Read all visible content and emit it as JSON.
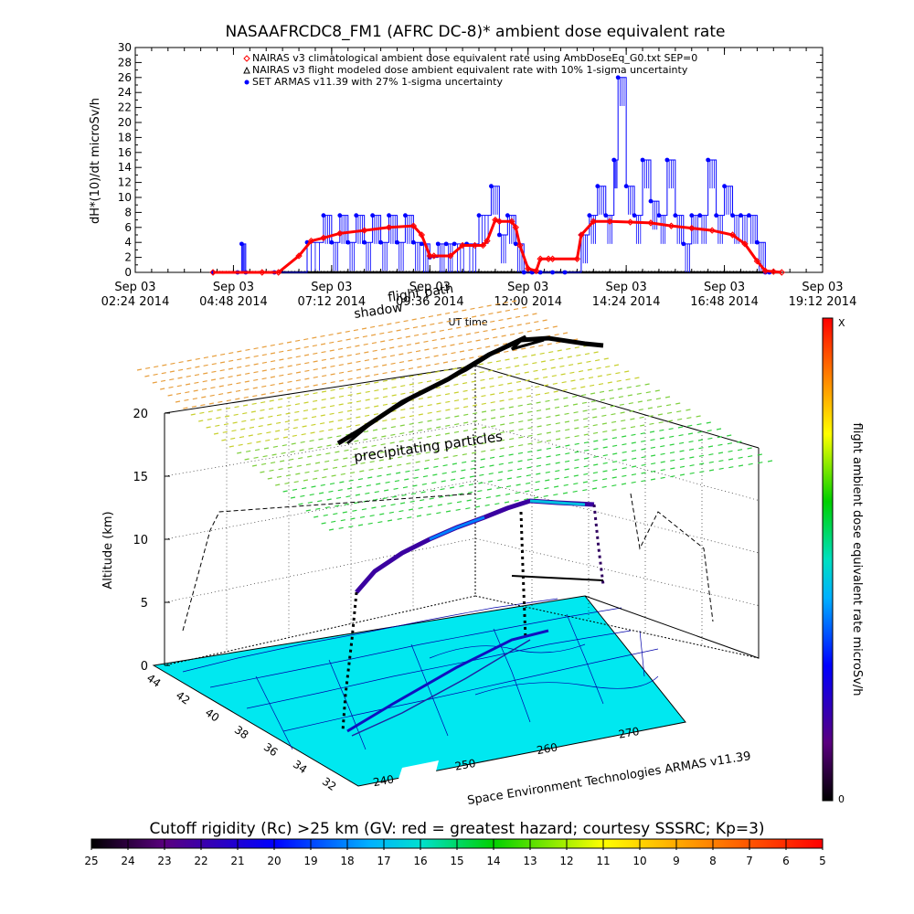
{
  "chart_data": [
    {
      "type": "line",
      "title": "NASAAFRCDC8_FM1 (AFRC DC-8)* ambient dose equivalent rate",
      "ylabel": "dH*(10)/dt microSv/h",
      "xlabel": "UT time",
      "ylim": [
        0,
        30
      ],
      "yticks": [
        "0",
        "2",
        "4",
        "6",
        "8",
        "10",
        "12",
        "14",
        "16",
        "18",
        "20",
        "22",
        "24",
        "26",
        "28",
        "30"
      ],
      "xticks": [
        {
          "date": "Sep 03",
          "time": "02:24 2014"
        },
        {
          "date": "Sep 03",
          "time": "04:48 2014"
        },
        {
          "date": "Sep 03",
          "time": "07:12 2014"
        },
        {
          "date": "Sep 03",
          "time": "09:36 2014"
        },
        {
          "date": "Sep 03",
          "time": "12:00 2014"
        },
        {
          "date": "Sep 03",
          "time": "14:24 2014"
        },
        {
          "date": "Sep 03",
          "time": "16:48 2014"
        },
        {
          "date": "Sep 03",
          "time": "19:12 2014"
        }
      ],
      "xrange_hours": [
        2.4,
        19.2
      ],
      "legend_position": "top",
      "legend": [
        "NAIRAS v3 climatological ambient dose equivalent rate using AmbDoseEq_G0.txt SEP=0",
        "NAIRAS v3 flight modeled dose ambient equivalent rate with 10% 1-sigma uncertainty",
        "SET ARMAS v11.39 with 27% 1-sigma uncertainty"
      ],
      "colors": {
        "nairas_clim": "#ff0000",
        "nairas_flight": "#000000",
        "armas": "#0000ff"
      },
      "series": [
        {
          "name": "NAIRAS v3 climatological ambient dose equivalent rate using AmbDoseEq_G0.txt SEP=0",
          "x": [
            4.3,
            5.5,
            5.9,
            6.4,
            6.7,
            7.0,
            7.4,
            8.0,
            8.6,
            9.2,
            9.4,
            9.6,
            9.7,
            10.1,
            10.4,
            10.7,
            10.9,
            11.0,
            11.2,
            11.3,
            11.6,
            11.7,
            11.8,
            12.0,
            12.2,
            12.3,
            12.5,
            12.6,
            13.2,
            13.3,
            13.6,
            14.0,
            14.5,
            15.0,
            15.5,
            16.0,
            16.5,
            17.0,
            17.3,
            17.6,
            17.8,
            18.0,
            18.2
          ],
          "y": [
            0,
            0,
            0,
            2.2,
            4.2,
            4.6,
            5.2,
            5.6,
            6.0,
            6.2,
            5.0,
            2.2,
            2.2,
            2.2,
            3.6,
            3.6,
            3.6,
            4.2,
            7.0,
            6.8,
            6.8,
            6.0,
            3.6,
            0.5,
            0.2,
            1.8,
            1.8,
            1.8,
            1.8,
            5.0,
            6.8,
            6.8,
            6.7,
            6.6,
            6.2,
            5.9,
            5.6,
            5.0,
            3.8,
            1.5,
            0.2,
            0.1,
            0
          ]
        },
        {
          "name": "NAIRAS v3 flight modeled dose ambient equivalent rate with 10% 1-sigma uncertainty",
          "x": [
            4.3,
            18.2
          ],
          "y": [
            0,
            0
          ]
        },
        {
          "name": "SET ARMAS v11.39 with 27% 1-sigma uncertainty",
          "x": [
            4.3,
            4.9,
            5.0,
            5.1,
            5.8,
            6.6,
            7.0,
            7.2,
            7.4,
            7.6,
            7.8,
            8.0,
            8.2,
            8.4,
            8.6,
            8.8,
            9.0,
            9.2,
            9.4,
            9.6,
            9.8,
            10.0,
            10.2,
            10.5,
            10.8,
            11.1,
            11.3,
            11.5,
            11.7,
            11.9,
            12.1,
            12.3,
            12.6,
            12.9,
            13.3,
            13.5,
            13.7,
            13.9,
            14.1,
            14.2,
            14.4,
            14.6,
            14.8,
            15.0,
            15.2,
            15.4,
            15.6,
            15.8,
            16.0,
            16.2,
            16.4,
            16.6,
            16.8,
            17.0,
            17.2,
            17.4,
            17.6,
            17.8,
            17.9
          ],
          "y": [
            0,
            0,
            3.8,
            0,
            0,
            4,
            7.6,
            4,
            7.6,
            4,
            7.6,
            4,
            7.6,
            4,
            7.6,
            4,
            7.6,
            4,
            3.8,
            2,
            3.8,
            3.8,
            3.8,
            3.8,
            7.6,
            11.5,
            5,
            7.6,
            3.8,
            0,
            0,
            0,
            0,
            0,
            5,
            7.6,
            11.5,
            7.6,
            15,
            26,
            11.5,
            7.6,
            15,
            9.5,
            7.6,
            15,
            7.6,
            3.8,
            7.6,
            7.6,
            15,
            7.6,
            11.5,
            7.6,
            7.6,
            7.6,
            4,
            0,
            0
          ]
        }
      ]
    },
    {
      "type": "scatter",
      "title": "",
      "ylabel": "Altitude (km)",
      "zticks": [
        "0",
        "5",
        "10",
        "15",
        "20"
      ],
      "lat_ticks": [
        "44",
        "42",
        "40",
        "38",
        "36",
        "34",
        "32"
      ],
      "lon_ticks": [
        "240",
        "250",
        "260",
        "270"
      ],
      "colorbar_right": {
        "label": "flight ambient dose equivalent rate microSv/h",
        "top": "X",
        "bottom": "0"
      },
      "annotations": [
        "precipitating particles",
        "flight path",
        "shadow",
        "Space Environment Technologies ARMAS v11.39"
      ]
    }
  ],
  "bottom_colorbar": {
    "title": "Cutoff rigidity (Rc) >25 km (GV: red = greatest hazard; courtesy SSSRC; Kp=3)",
    "labels": [
      "25",
      "24",
      "23",
      "22",
      "21",
      "20",
      "19",
      "18",
      "17",
      "16",
      "15",
      "14",
      "13",
      "12",
      "11",
      "10",
      "9",
      "8",
      "7",
      "6",
      "5"
    ]
  }
}
